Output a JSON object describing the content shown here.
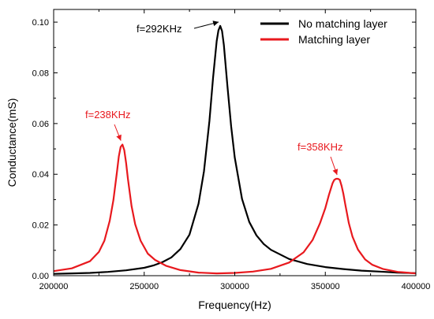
{
  "chart_data": {
    "type": "line",
    "title": "",
    "xlabel": "Frequency(Hz)",
    "ylabel": "Conductance(mS)",
    "xlim": [
      200000,
      400000
    ],
    "ylim": [
      0.0,
      0.105
    ],
    "x_ticks": [
      200000,
      250000,
      300000,
      350000,
      400000
    ],
    "x_tick_labels": [
      "200000",
      "250000",
      "300000",
      "350000",
      "400000"
    ],
    "y_ticks": [
      0.0,
      0.02,
      0.04,
      0.06,
      0.08,
      0.1
    ],
    "y_tick_labels": [
      "0.00",
      "0.02",
      "0.04",
      "0.06",
      "0.08",
      "0.10"
    ],
    "grid": false,
    "legend_position": "top-right",
    "series": [
      {
        "name": "No matching layer",
        "color": "#000000",
        "x": [
          200000,
          210000,
          220000,
          230000,
          240000,
          250000,
          255000,
          260000,
          265000,
          270000,
          275000,
          280000,
          283000,
          286000,
          288000,
          290000,
          291000,
          292000,
          293000,
          294000,
          296000,
          298000,
          300000,
          304000,
          308000,
          312000,
          316000,
          320000,
          330000,
          340000,
          350000,
          360000,
          370000,
          380000,
          390000,
          400000
        ],
        "y": [
          0.0007,
          0.0009,
          0.0011,
          0.0015,
          0.0021,
          0.0031,
          0.004,
          0.0053,
          0.0072,
          0.0105,
          0.0162,
          0.0284,
          0.0412,
          0.061,
          0.078,
          0.0925,
          0.0967,
          0.0985,
          0.0965,
          0.091,
          0.0745,
          0.059,
          0.0466,
          0.0303,
          0.0212,
          0.0159,
          0.0125,
          0.0102,
          0.0066,
          0.0046,
          0.0034,
          0.0026,
          0.002,
          0.0016,
          0.0012,
          0.001
        ]
      },
      {
        "name": "Matching layer",
        "color": "#e8191e",
        "x": [
          200000,
          210000,
          220000,
          225000,
          228000,
          231000,
          233000,
          235000,
          236000,
          237000,
          238000,
          239000,
          240000,
          241000,
          243000,
          245000,
          248000,
          252000,
          256000,
          262000,
          270000,
          280000,
          290000,
          300000,
          310000,
          320000,
          330000,
          338000,
          343000,
          347000,
          350000,
          352000,
          354000,
          355000,
          356000,
          357000,
          358000,
          359000,
          360000,
          361000,
          363000,
          365000,
          368000,
          372000,
          376000,
          382000,
          390000,
          400000
        ],
        "y": [
          0.0018,
          0.0029,
          0.0057,
          0.0094,
          0.0138,
          0.0217,
          0.0298,
          0.0411,
          0.0471,
          0.0508,
          0.0517,
          0.0495,
          0.0445,
          0.0382,
          0.0275,
          0.0203,
          0.0138,
          0.0087,
          0.0062,
          0.0039,
          0.0022,
          0.0012,
          0.0009,
          0.0011,
          0.0016,
          0.0027,
          0.0052,
          0.0092,
          0.0141,
          0.0206,
          0.0267,
          0.0318,
          0.0364,
          0.0378,
          0.0382,
          0.0382,
          0.0378,
          0.0354,
          0.0322,
          0.0282,
          0.0207,
          0.0154,
          0.0103,
          0.0064,
          0.0043,
          0.0026,
          0.0015,
          0.0009
        ]
      }
    ],
    "annotations": [
      {
        "text": "f=292KHz",
        "color": "#000000",
        "x": 292000,
        "y": 0.0985
      },
      {
        "text": "f=238KHz",
        "color": "#e8191e",
        "x": 238000,
        "y": 0.0517
      },
      {
        "text": "f=358KHz",
        "color": "#e8191e",
        "x": 356500,
        "y": 0.0382
      }
    ]
  }
}
